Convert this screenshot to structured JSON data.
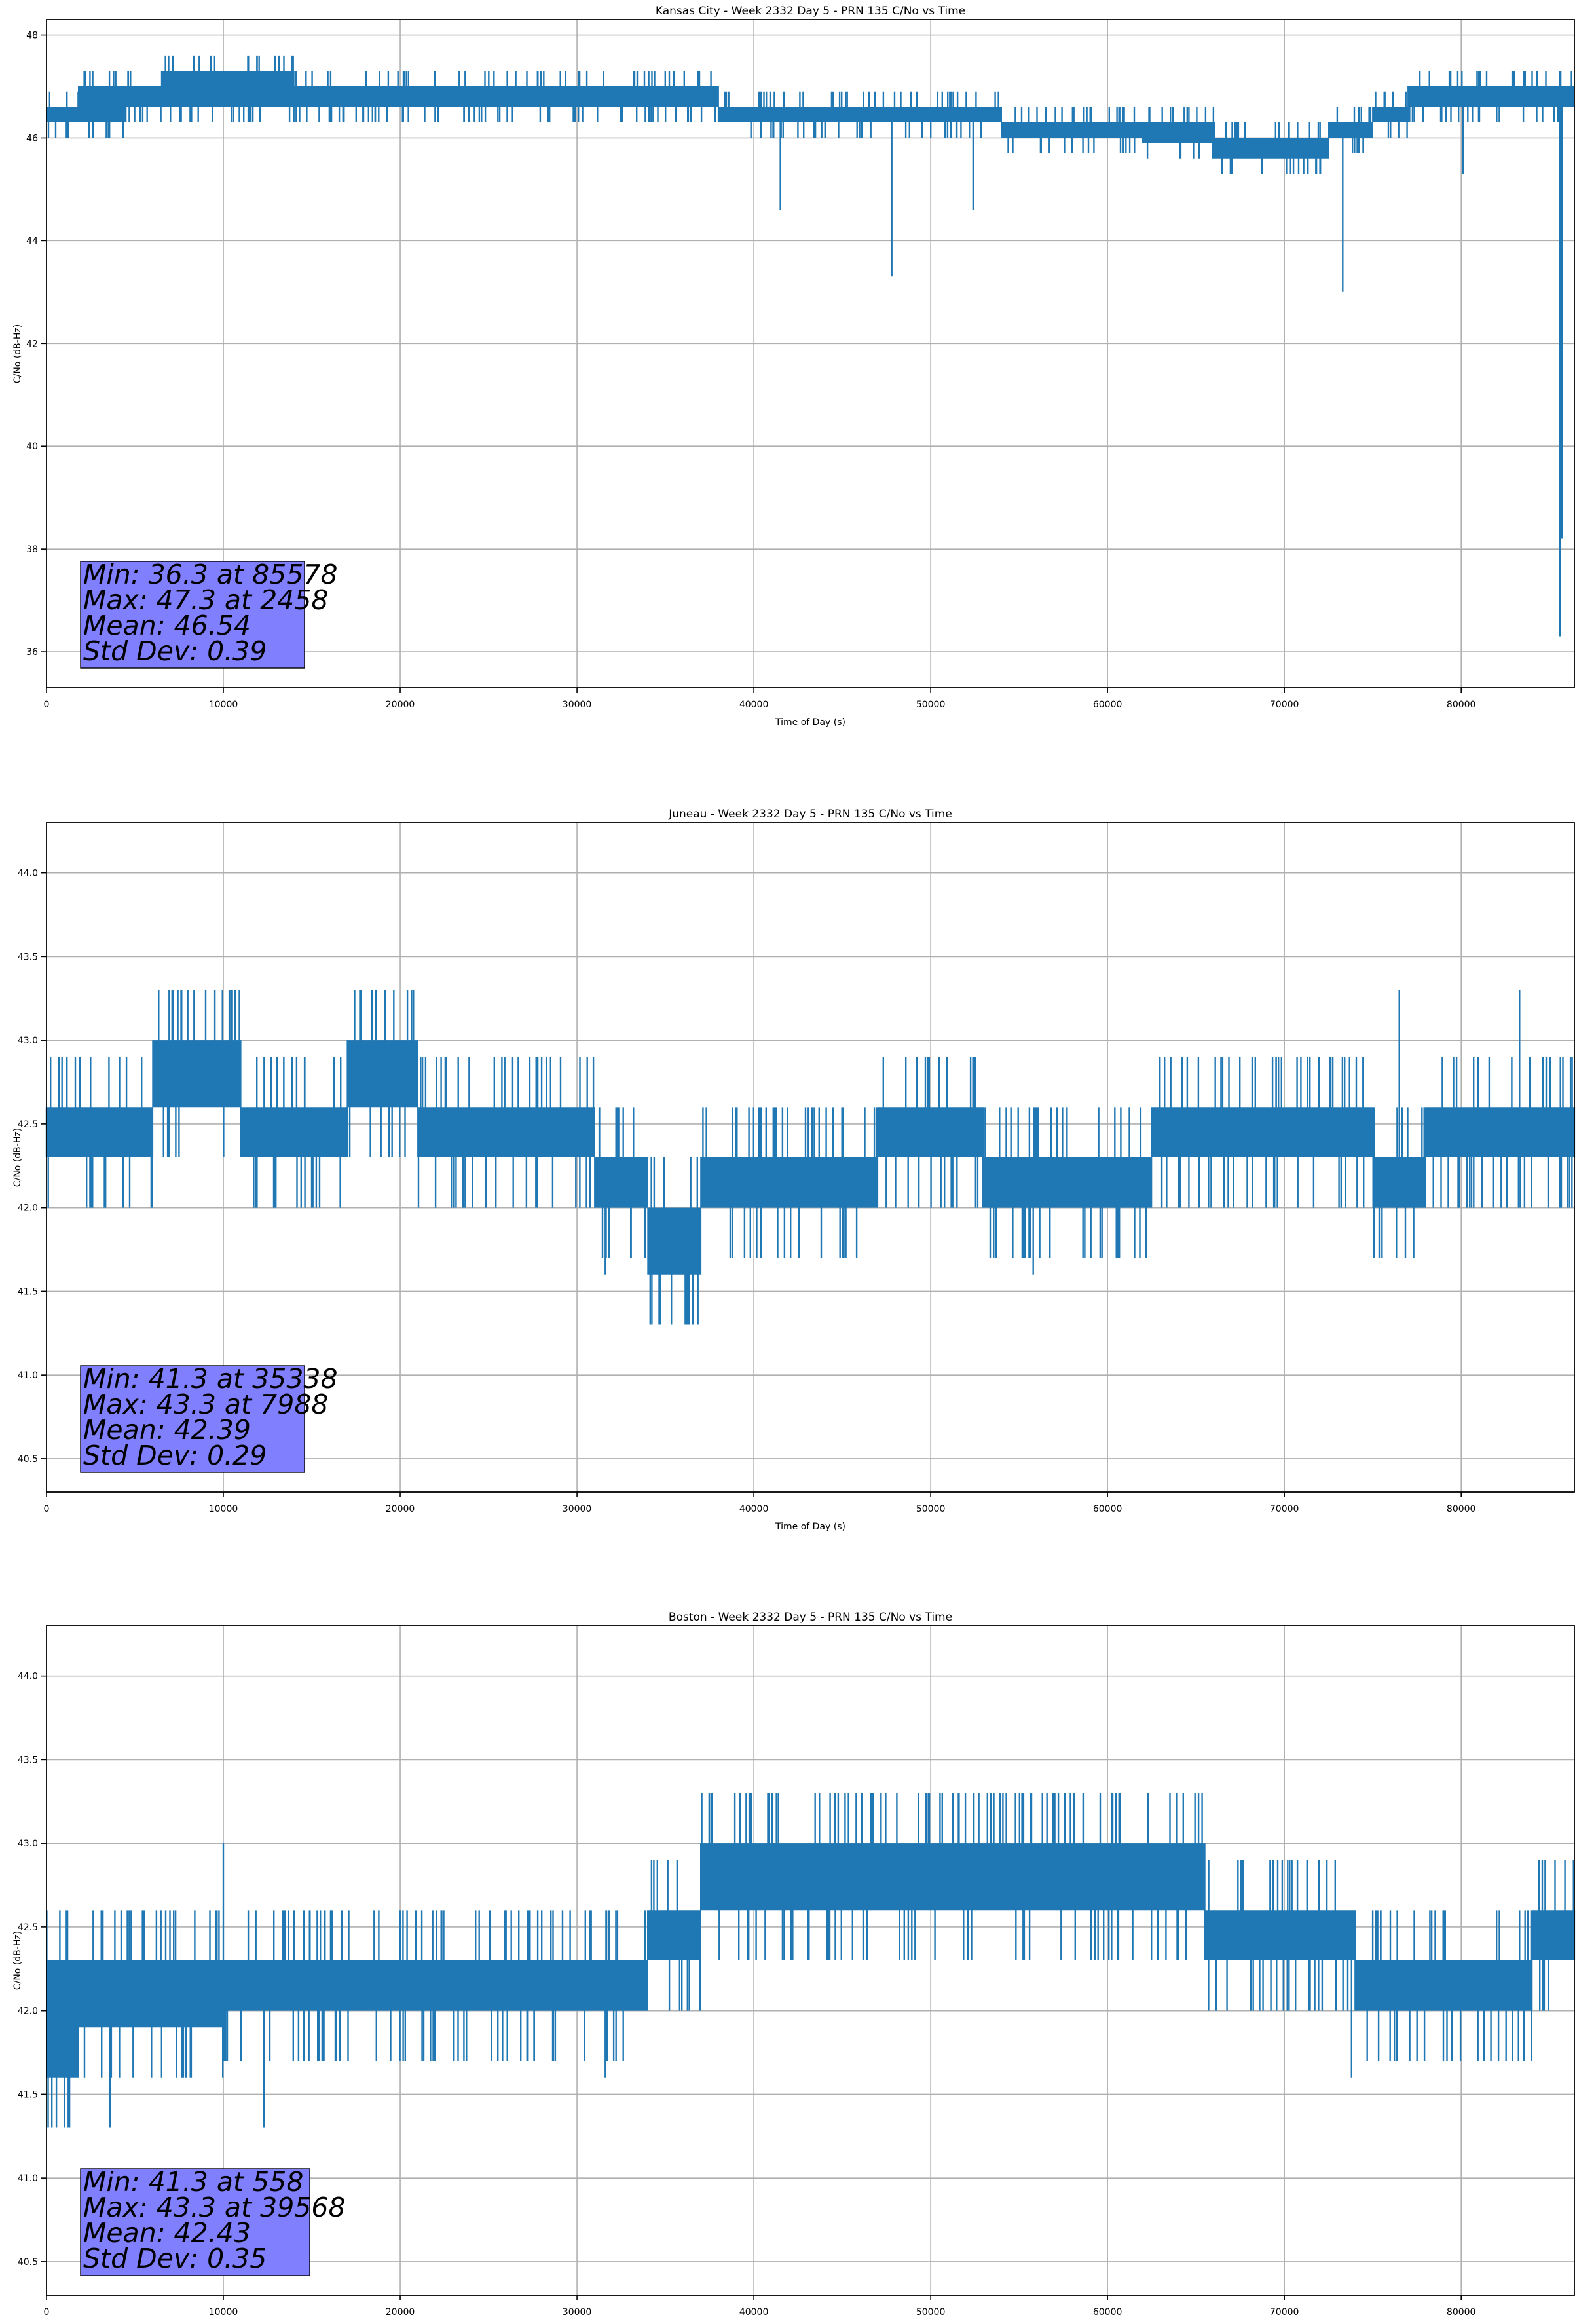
{
  "chart_data": [
    {
      "type": "line",
      "title": "Kansas City - Week 2332 Day 5 - PRN 135 C/No vs Time",
      "xlabel": "Time of Day (s)",
      "ylabel": "C/No (dB-Hz)",
      "xlim": [
        0,
        86400
      ],
      "ylim": [
        35.3,
        48.3
      ],
      "xticks": [
        0,
        10000,
        20000,
        30000,
        40000,
        50000,
        60000,
        70000,
        80000
      ],
      "yticks": [
        36,
        38,
        40,
        42,
        44,
        46,
        48
      ],
      "ytick_decimals": 0,
      "grid": true,
      "series_color": "#1f77b4",
      "stats_box": {
        "lines": [
          "Min: 36.3 at 85578",
          "Max: 47.3 at 2458",
          "Mean: 46.54",
          "Std Dev: 0.39"
        ],
        "color": "#8080ff",
        "placement": "lower-left"
      },
      "bands": [
        {
          "x": [
            0,
            1800
          ],
          "low": 46.3,
          "high": 46.6
        },
        {
          "x": [
            1800,
            4500
          ],
          "low": 46.3,
          "high": 47.0
        },
        {
          "x": [
            4500,
            6500
          ],
          "low": 46.6,
          "high": 47.0
        },
        {
          "x": [
            6500,
            14000
          ],
          "low": 46.6,
          "high": 47.3
        },
        {
          "x": [
            14000,
            30000
          ],
          "low": 46.6,
          "high": 47.0
        },
        {
          "x": [
            30000,
            38000
          ],
          "low": 46.6,
          "high": 47.0
        },
        {
          "x": [
            38000,
            54000
          ],
          "low": 46.3,
          "high": 46.6
        },
        {
          "x": [
            54000,
            62000
          ],
          "low": 46.0,
          "high": 46.3
        },
        {
          "x": [
            62000,
            66000
          ],
          "low": 45.9,
          "high": 46.3
        },
        {
          "x": [
            66000,
            72500
          ],
          "low": 45.6,
          "high": 46.0
        },
        {
          "x": [
            72500,
            75000
          ],
          "low": 46.0,
          "high": 46.3
        },
        {
          "x": [
            75000,
            77000
          ],
          "low": 46.3,
          "high": 46.6
        },
        {
          "x": [
            77000,
            80500
          ],
          "low": 46.6,
          "high": 47.0
        },
        {
          "x": [
            80500,
            84000
          ],
          "low": 46.6,
          "high": 47.0
        },
        {
          "x": [
            84000,
            86400
          ],
          "low": 46.6,
          "high": 47.0
        }
      ],
      "spikes": [
        {
          "x": 2458,
          "y": 47.3
        },
        {
          "x": 2600,
          "y": 46.0
        },
        {
          "x": 8200,
          "y": 46.3
        },
        {
          "x": 41500,
          "y": 44.6
        },
        {
          "x": 47800,
          "y": 43.3
        },
        {
          "x": 52400,
          "y": 44.6
        },
        {
          "x": 73300,
          "y": 43.0
        },
        {
          "x": 80100,
          "y": 45.3
        },
        {
          "x": 83000,
          "y": 47.3
        },
        {
          "x": 85578,
          "y": 36.3
        },
        {
          "x": 85700,
          "y": 38.2
        }
      ]
    },
    {
      "type": "line",
      "title": "Juneau - Week 2332 Day 5 - PRN 135 C/No vs Time",
      "xlabel": "Time of Day (s)",
      "ylabel": "C/No (dB-Hz)",
      "xlim": [
        0,
        86400
      ],
      "ylim": [
        40.3,
        44.3
      ],
      "xticks": [
        0,
        10000,
        20000,
        30000,
        40000,
        50000,
        60000,
        70000,
        80000
      ],
      "yticks": [
        40.5,
        41.0,
        41.5,
        42.0,
        42.5,
        43.0,
        43.5,
        44.0
      ],
      "ytick_decimals": 1,
      "grid": true,
      "series_color": "#1f77b4",
      "stats_box": {
        "lines": [
          "Min: 41.3 at 35338",
          "Max: 43.3 at 7988",
          "Mean: 42.39",
          "Std Dev: 0.29"
        ],
        "color": "#8080ff",
        "placement": "lower-left"
      },
      "bands": [
        {
          "x": [
            0,
            6000
          ],
          "low": 42.3,
          "high": 42.6
        },
        {
          "x": [
            6000,
            11000
          ],
          "low": 42.6,
          "high": 43.0
        },
        {
          "x": [
            11000,
            17000
          ],
          "low": 42.3,
          "high": 42.6
        },
        {
          "x": [
            17000,
            21000
          ],
          "low": 42.6,
          "high": 43.0
        },
        {
          "x": [
            21000,
            31000
          ],
          "low": 42.3,
          "high": 42.6
        },
        {
          "x": [
            31000,
            34000
          ],
          "low": 42.0,
          "high": 42.3
        },
        {
          "x": [
            34000,
            37000
          ],
          "low": 41.6,
          "high": 42.0
        },
        {
          "x": [
            37000,
            41000
          ],
          "low": 42.0,
          "high": 42.3
        },
        {
          "x": [
            41000,
            47000
          ],
          "low": 42.0,
          "high": 42.3
        },
        {
          "x": [
            47000,
            53000
          ],
          "low": 42.3,
          "high": 42.6
        },
        {
          "x": [
            53000,
            62500
          ],
          "low": 42.0,
          "high": 42.3
        },
        {
          "x": [
            62500,
            75000
          ],
          "low": 42.3,
          "high": 42.6
        },
        {
          "x": [
            75000,
            78000
          ],
          "low": 42.0,
          "high": 42.3
        },
        {
          "x": [
            78000,
            86400
          ],
          "low": 42.3,
          "high": 42.6
        }
      ],
      "spikes": [
        {
          "x": 7988,
          "y": 43.3
        },
        {
          "x": 9950,
          "y": 43.3
        },
        {
          "x": 35338,
          "y": 41.3
        },
        {
          "x": 36200,
          "y": 41.3
        },
        {
          "x": 76500,
          "y": 43.3
        },
        {
          "x": 83300,
          "y": 43.3
        },
        {
          "x": 31600,
          "y": 41.6
        },
        {
          "x": 55800,
          "y": 41.6
        }
      ]
    },
    {
      "type": "line",
      "title": "Boston - Week 2332 Day 5 - PRN 135 C/No vs Time",
      "xlabel": "Time of Day (s)",
      "ylabel": "C/No (dB-Hz)",
      "xlim": [
        0,
        86400
      ],
      "ylim": [
        40.3,
        44.3
      ],
      "xticks": [
        0,
        10000,
        20000,
        30000,
        40000,
        50000,
        60000,
        70000,
        80000
      ],
      "yticks": [
        40.5,
        41.0,
        41.5,
        42.0,
        42.5,
        43.0,
        43.5,
        44.0
      ],
      "ytick_decimals": 1,
      "grid": true,
      "series_color": "#1f77b4",
      "stats_box": {
        "lines": [
          "Min: 41.3 at 558",
          "Max: 43.3 at 39568",
          "Mean: 42.43",
          "Std Dev: 0.35"
        ],
        "color": "#8080ff",
        "placement": "lower-left"
      },
      "bands": [
        {
          "x": [
            0,
            1800
          ],
          "low": 41.6,
          "high": 42.3
        },
        {
          "x": [
            1800,
            10000
          ],
          "low": 41.9,
          "high": 42.3
        },
        {
          "x": [
            10000,
            16000
          ],
          "low": 42.0,
          "high": 42.3
        },
        {
          "x": [
            16000,
            34000
          ],
          "low": 42.0,
          "high": 42.3
        },
        {
          "x": [
            34000,
            37000
          ],
          "low": 42.3,
          "high": 42.6
        },
        {
          "x": [
            37000,
            42000
          ],
          "low": 42.6,
          "high": 43.0
        },
        {
          "x": [
            42000,
            46000
          ],
          "low": 42.6,
          "high": 43.0
        },
        {
          "x": [
            46000,
            65500
          ],
          "low": 42.6,
          "high": 43.0
        },
        {
          "x": [
            65500,
            74000
          ],
          "low": 42.3,
          "high": 42.6
        },
        {
          "x": [
            74000,
            84000
          ],
          "low": 42.0,
          "high": 42.3
        },
        {
          "x": [
            84000,
            86400
          ],
          "low": 42.3,
          "high": 42.6
        }
      ],
      "spikes": [
        {
          "x": 558,
          "y": 41.3
        },
        {
          "x": 1300,
          "y": 41.3
        },
        {
          "x": 3600,
          "y": 41.3
        },
        {
          "x": 10000,
          "y": 43.0
        },
        {
          "x": 12300,
          "y": 41.3
        },
        {
          "x": 39568,
          "y": 43.3
        },
        {
          "x": 31600,
          "y": 41.6
        },
        {
          "x": 73800,
          "y": 41.6
        }
      ]
    }
  ]
}
